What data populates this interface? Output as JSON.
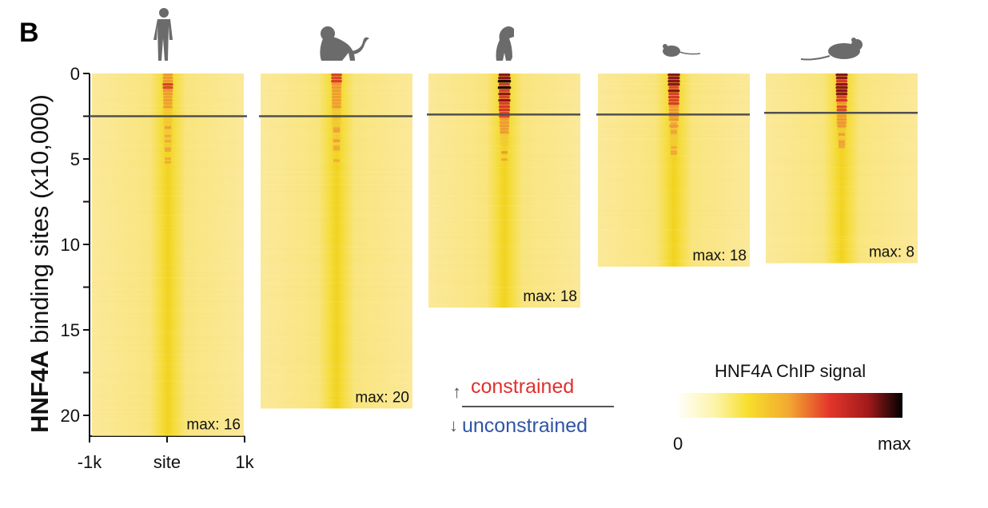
{
  "panel_label": "B",
  "chart_data": {
    "type": "heatmap",
    "title": "",
    "ylabel_bold": "HNF4A",
    "ylabel_rest": " binding sites (x10,000)",
    "yticks": [
      0,
      5,
      10,
      15,
      20
    ],
    "xticks": [
      "-1k",
      "site",
      "1k"
    ],
    "species": [
      {
        "name": "human",
        "n_sites": 21.2,
        "max_label": "max: 16",
        "constrained_cutoff": 2.5,
        "peak_strength": 0.45
      },
      {
        "name": "macaque",
        "n_sites": 19.6,
        "max_label": "max: 20",
        "constrained_cutoff": 2.5,
        "peak_strength": 0.5
      },
      {
        "name": "dog",
        "n_sites": 13.7,
        "max_label": "max: 18",
        "constrained_cutoff": 2.4,
        "peak_strength": 0.95
      },
      {
        "name": "mouse",
        "n_sites": 11.3,
        "max_label": "max: 18",
        "constrained_cutoff": 2.4,
        "peak_strength": 0.75
      },
      {
        "name": "rat",
        "n_sites": 11.1,
        "max_label": "max:  8",
        "constrained_cutoff": 2.3,
        "peak_strength": 0.85
      }
    ],
    "legend": {
      "title": "HNF4A ChIP signal",
      "min_label": "0",
      "max_label": "max",
      "colors": [
        "#ffffff",
        "#fdf09a",
        "#f8e03a",
        "#f5b030",
        "#e8452e",
        "#b01f1f",
        "#000000"
      ]
    },
    "split_legend": {
      "up_label": "constrained",
      "down_label": "unconstrained",
      "up_arrow": "↑",
      "down_arrow": "↓"
    }
  }
}
